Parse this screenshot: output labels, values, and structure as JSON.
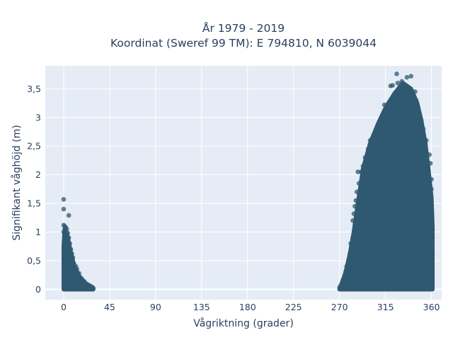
{
  "chart_data": {
    "type": "scatter",
    "title": [
      "År 1979 - 2019",
      "Koordinat (Sweref 99 TM): E 794810, N 6039044"
    ],
    "xlabel": "Vågriktning (grader)",
    "ylabel": "Signifikant våghöjd (m)",
    "xlim": [
      -18,
      370
    ],
    "ylim": [
      -0.18,
      3.9
    ],
    "x_ticks": [
      0,
      45,
      90,
      135,
      180,
      225,
      270,
      315,
      360
    ],
    "x_tick_labels": [
      "0",
      "45",
      "90",
      "135",
      "180",
      "225",
      "270",
      "315",
      "360"
    ],
    "y_ticks": [
      0,
      0.5,
      1,
      1.5,
      2,
      2.5,
      3,
      3.5
    ],
    "y_tick_labels": [
      "0",
      "0,5",
      "1",
      "1,5",
      "2",
      "2,5",
      "3",
      "3,5"
    ],
    "grid": true,
    "legend": "none",
    "marker_color": "#2f5970",
    "plot_bg": "#e5ecf6",
    "series": [
      {
        "points": [
          [
            0,
            1.57
          ],
          [
            0,
            1.4
          ],
          [
            5,
            1.29
          ],
          [
            0,
            1.12
          ],
          [
            1,
            1.1
          ],
          [
            2,
            1.08
          ],
          [
            3,
            1.05
          ],
          [
            0,
            1.0
          ],
          [
            4,
            0.98
          ],
          [
            2,
            0.95
          ],
          [
            5,
            0.9
          ],
          [
            1,
            0.88
          ],
          [
            6,
            0.8
          ],
          [
            7,
            0.7
          ],
          [
            3,
            0.72
          ],
          [
            8,
            0.62
          ],
          [
            9,
            0.55
          ],
          [
            10,
            0.45
          ],
          [
            12,
            0.4
          ],
          [
            13,
            0.35
          ],
          [
            15,
            0.28
          ],
          [
            16,
            0.22
          ],
          [
            18,
            0.18
          ],
          [
            20,
            0.14
          ],
          [
            22,
            0.1
          ],
          [
            24,
            0.08
          ],
          [
            26,
            0.06
          ],
          [
            28,
            0.04
          ],
          [
            29,
            0.02
          ],
          [
            4,
            0.5
          ],
          [
            6,
            0.3
          ],
          [
            2,
            0.2
          ],
          [
            11,
            0.12
          ],
          [
            14,
            0.05
          ],
          [
            326,
            3.76
          ],
          [
            336,
            3.7
          ],
          [
            340,
            3.72
          ],
          [
            331,
            3.63
          ],
          [
            327,
            3.6
          ],
          [
            322,
            3.56
          ],
          [
            320,
            3.55
          ],
          [
            344,
            3.45
          ],
          [
            324,
            3.42
          ],
          [
            345,
            3.3
          ],
          [
            314,
            3.22
          ],
          [
            326,
            3.18
          ],
          [
            315,
            3.1
          ],
          [
            330,
            3.15
          ],
          [
            346,
            3.2
          ],
          [
            350,
            2.95
          ],
          [
            352,
            2.8
          ],
          [
            355,
            2.6
          ],
          [
            358,
            2.35
          ],
          [
            359,
            2.2
          ],
          [
            357,
            2.05
          ],
          [
            360,
            1.92
          ],
          [
            360,
            1.75
          ],
          [
            359,
            1.62
          ],
          [
            360,
            1.45
          ],
          [
            360,
            1.3
          ],
          [
            300,
            2.6
          ],
          [
            298,
            2.45
          ],
          [
            295,
            2.3
          ],
          [
            293,
            2.15
          ],
          [
            291,
            2.05
          ],
          [
            288,
            2.05
          ],
          [
            292,
            1.95
          ],
          [
            289,
            1.85
          ],
          [
            287,
            1.7
          ],
          [
            286,
            1.55
          ],
          [
            285,
            1.45
          ],
          [
            284,
            1.32
          ],
          [
            290,
            1.28
          ],
          [
            283,
            1.2
          ],
          [
            285,
            1.1
          ],
          [
            287,
            1.0
          ],
          [
            283,
            0.9
          ],
          [
            281,
            0.8
          ],
          [
            282,
            0.7
          ],
          [
            280,
            0.62
          ],
          [
            279,
            0.52
          ],
          [
            277,
            0.4
          ],
          [
            276,
            0.3
          ],
          [
            275,
            0.22
          ],
          [
            273,
            0.15
          ],
          [
            272,
            0.1
          ],
          [
            271,
            0.06
          ],
          [
            270,
            0.03
          ],
          [
            361,
            1.05
          ],
          [
            361,
            0.9
          ],
          [
            361,
            0.6
          ],
          [
            361,
            0.4
          ],
          [
            361,
            0.2
          ],
          [
            361,
            0.05
          ],
          [
            335,
            2.9
          ],
          [
            340,
            2.5
          ],
          [
            318,
            2.7
          ],
          [
            310,
            2.4
          ],
          [
            305,
            2.2
          ]
        ]
      }
    ]
  }
}
